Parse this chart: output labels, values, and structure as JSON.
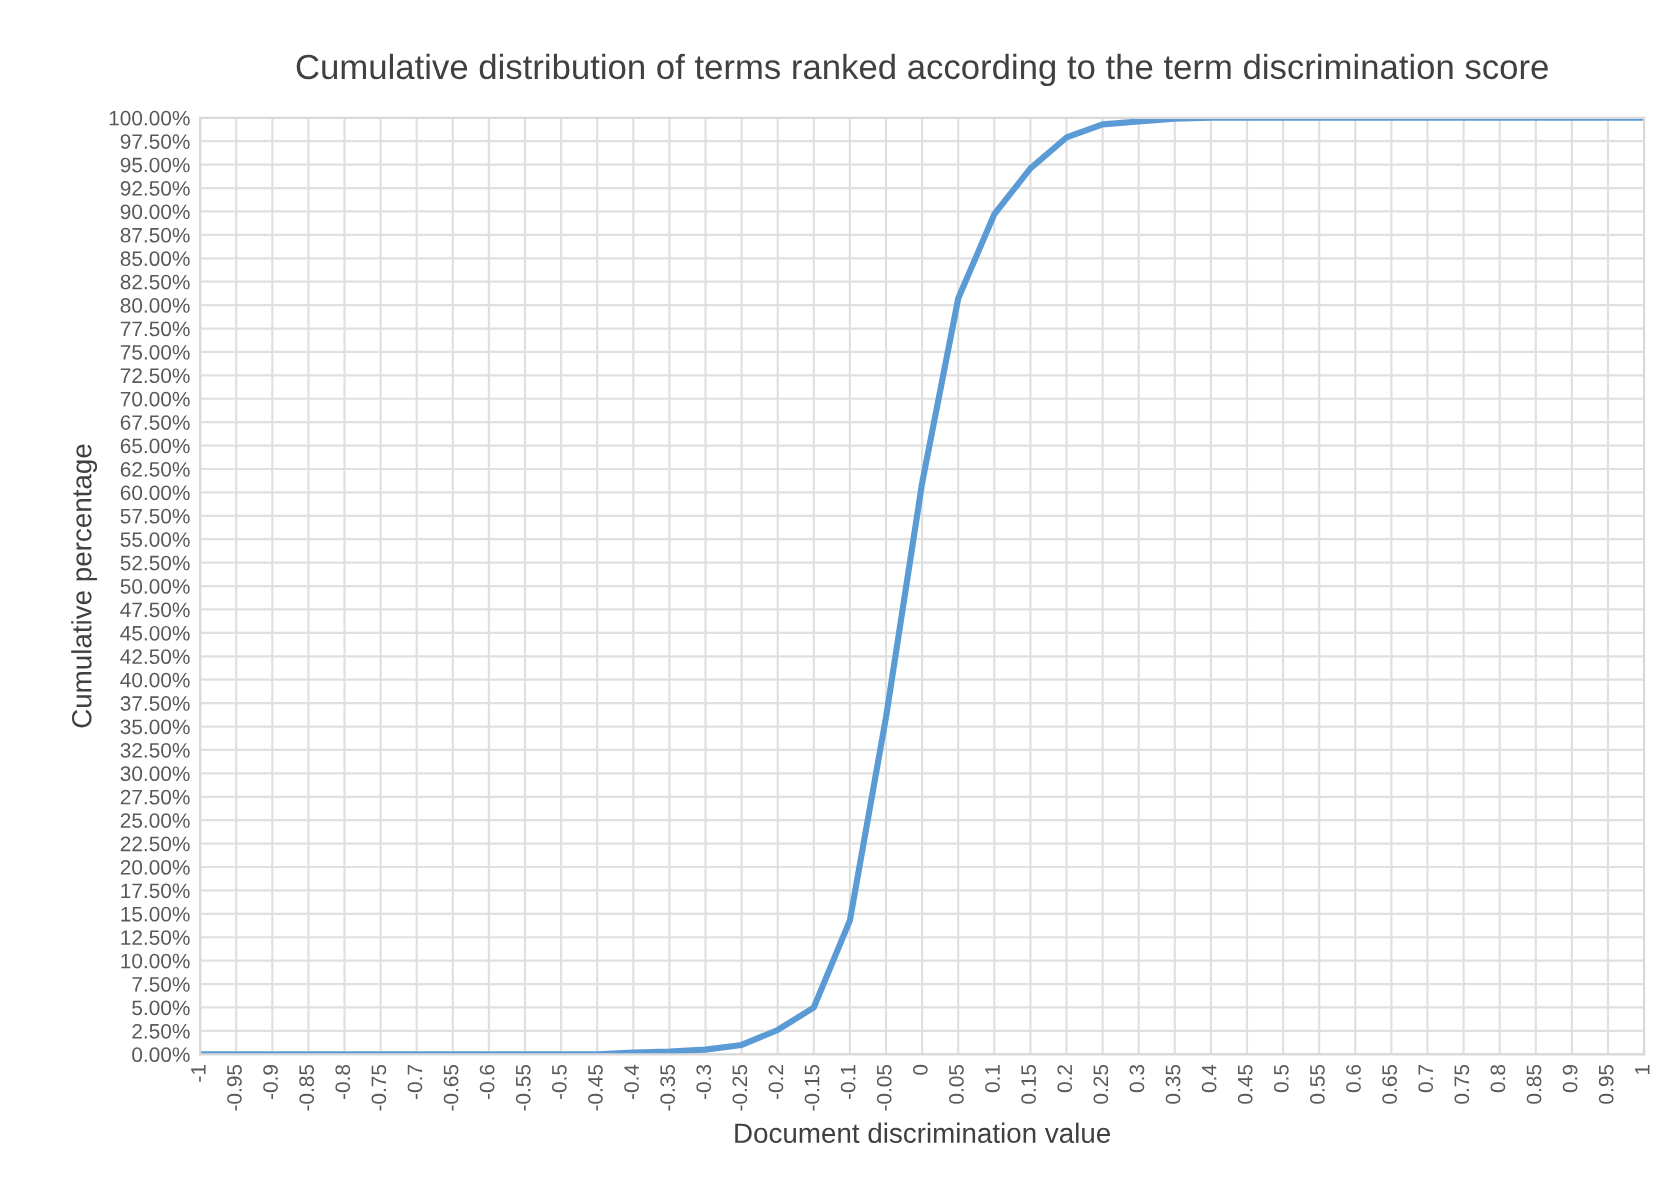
{
  "chart_data": {
    "type": "line",
    "title": "Cumulative distribution of terms ranked according to the term discrimination score",
    "xlabel": "Document discrimination value",
    "ylabel": "Cumulative percentage",
    "categories": [
      "-1",
      "-0.95",
      "-0.9",
      "-0.85",
      "-0.8",
      "-0.75",
      "-0.7",
      "-0.65",
      "-0.6",
      "-0.55",
      "-0.5",
      "-0.45",
      "-0.4",
      "-0.35",
      "-0.3",
      "-0.25",
      "-0.2",
      "-0.15",
      "-0.1",
      "-0.05",
      "0",
      "0.05",
      "0.1",
      "0.15",
      "0.2",
      "0.25",
      "0.3",
      "0.35",
      "0.4",
      "0.45",
      "0.5",
      "0.55",
      "0.6",
      "0.65",
      "0.7",
      "0.75",
      "0.8",
      "0.85",
      "0.9",
      "0.95",
      "1"
    ],
    "series": [
      {
        "color": "#5b9bd5",
        "values": [
          0,
          0,
          0,
          0,
          0,
          0,
          0,
          0,
          0,
          0,
          0,
          0,
          0.2,
          0.3,
          0.5,
          1,
          2.6,
          5,
          14.3,
          36,
          61,
          80.7,
          89.7,
          94.6,
          97.9,
          99.3,
          99.6,
          99.9,
          100,
          100,
          100,
          100,
          100,
          100,
          100,
          100,
          100,
          100,
          100,
          100,
          100
        ]
      }
    ],
    "ylim": [
      0,
      100
    ],
    "yticks": [
      {
        "value": 0,
        "label": "0.00%"
      },
      {
        "value": 2.5,
        "label": "2.50%"
      },
      {
        "value": 5,
        "label": "5.00%"
      },
      {
        "value": 7.5,
        "label": "7.50%"
      },
      {
        "value": 10,
        "label": "10.00%"
      },
      {
        "value": 12.5,
        "label": "12.50%"
      },
      {
        "value": 15,
        "label": "15.00%"
      },
      {
        "value": 17.5,
        "label": "17.50%"
      },
      {
        "value": 20,
        "label": "20.00%"
      },
      {
        "value": 22.5,
        "label": "22.50%"
      },
      {
        "value": 25,
        "label": "25.00%"
      },
      {
        "value": 27.5,
        "label": "27.50%"
      },
      {
        "value": 30,
        "label": "30.00%"
      },
      {
        "value": 32.5,
        "label": "32.50%"
      },
      {
        "value": 35,
        "label": "35.00%"
      },
      {
        "value": 37.5,
        "label": "37.50%"
      },
      {
        "value": 40,
        "label": "40.00%"
      },
      {
        "value": 42.5,
        "label": "42.50%"
      },
      {
        "value": 45,
        "label": "45.00%"
      },
      {
        "value": 47.5,
        "label": "47.50%"
      },
      {
        "value": 50,
        "label": "50.00%"
      },
      {
        "value": 52.5,
        "label": "52.50%"
      },
      {
        "value": 55,
        "label": "55.00%"
      },
      {
        "value": 57.5,
        "label": "57.50%"
      },
      {
        "value": 60,
        "label": "60.00%"
      },
      {
        "value": 62.5,
        "label": "62.50%"
      },
      {
        "value": 65,
        "label": "65.00%"
      },
      {
        "value": 67.5,
        "label": "67.50%"
      },
      {
        "value": 70,
        "label": "70.00%"
      },
      {
        "value": 72.5,
        "label": "72.50%"
      },
      {
        "value": 75,
        "label": "75.00%"
      },
      {
        "value": 77.5,
        "label": "77.50%"
      },
      {
        "value": 80,
        "label": "80.00%"
      },
      {
        "value": 82.5,
        "label": "82.50%"
      },
      {
        "value": 85,
        "label": "85.00%"
      },
      {
        "value": 87.5,
        "label": "87.50%"
      },
      {
        "value": 90,
        "label": "90.00%"
      },
      {
        "value": 92.5,
        "label": "92.50%"
      },
      {
        "value": 95,
        "label": "95.00%"
      },
      {
        "value": 97.5,
        "label": "97.50%"
      },
      {
        "value": 100,
        "label": "100.00%"
      }
    ],
    "grid": true,
    "legend": false,
    "marker": "none",
    "line_style": "solid"
  }
}
